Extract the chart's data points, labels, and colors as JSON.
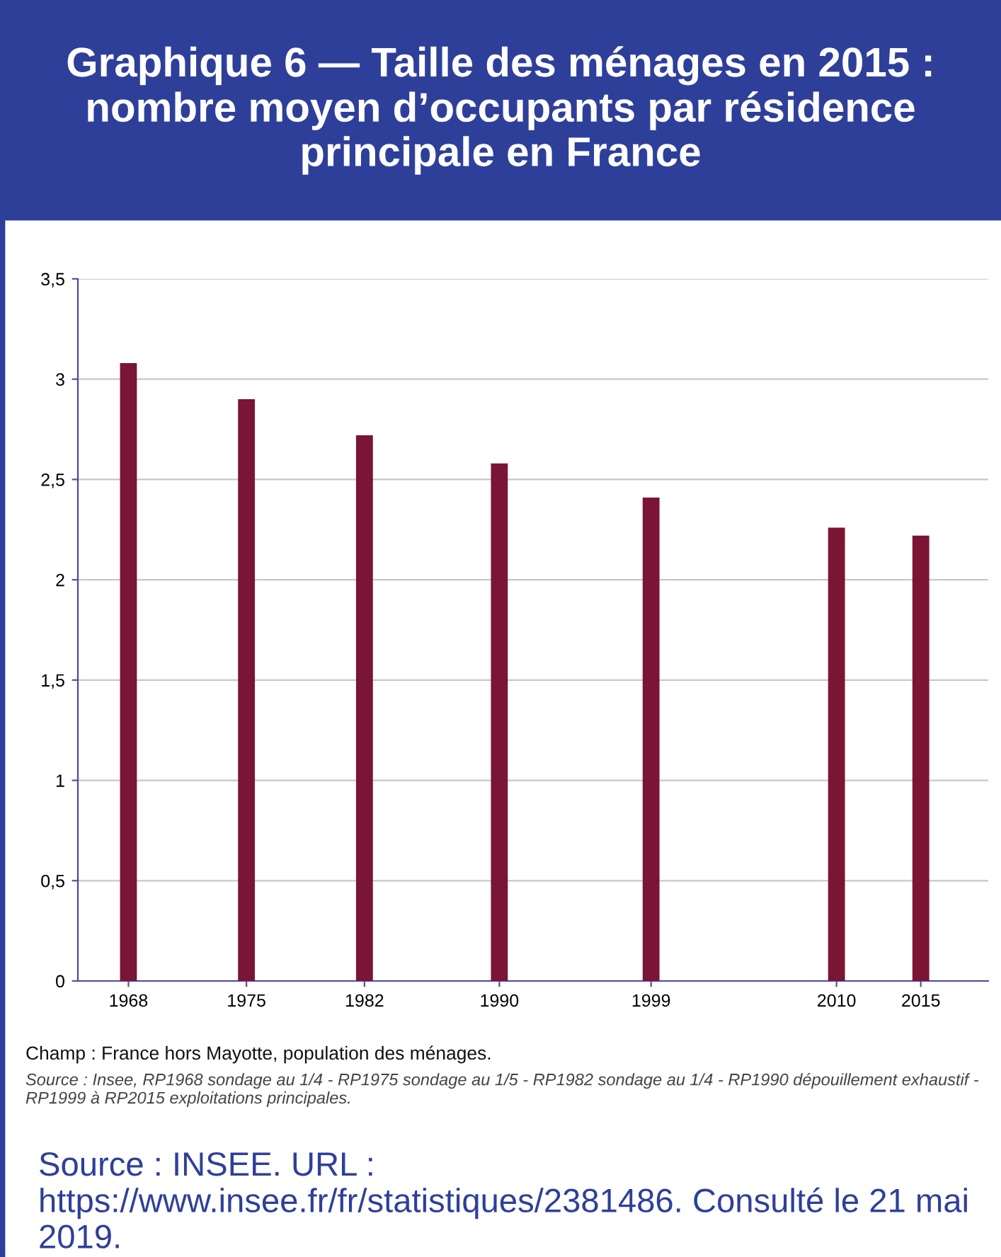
{
  "chart_data": {
    "type": "bar",
    "title": "Graphique 6 — Taille des ménages en 2015 : nombre moyen d’occupants par résidence principale en France",
    "x": [
      1968,
      1975,
      1982,
      1990,
      1999,
      2010,
      2015
    ],
    "values": [
      3.08,
      2.9,
      2.72,
      2.58,
      2.41,
      2.26,
      2.22
    ],
    "color": "#7b1535",
    "xlim": [
      1965,
      2019
    ],
    "xticks": [
      1968,
      1975,
      1982,
      1990,
      1999,
      2010,
      2015
    ],
    "ylim": [
      0,
      3.5
    ],
    "yticks": [
      0,
      {
        "value": 0.5,
        "label": "0,5"
      },
      1,
      {
        "value": 1.5,
        "label": "1,5"
      },
      2,
      {
        "value": 2.5,
        "label": "2,5"
      },
      3,
      {
        "value": 3.5,
        "label": "3,5"
      }
    ],
    "grid": "y",
    "annotations": [
      "Champ : France hors Mayotte, population des ménages.",
      "Source : Insee, RP1968 sondage au 1/4 - RP1975 sondage au 1/5 - RP1982 sondage au 1/4 - RP1990 dépouillement exhaustif - RP1999 à RP2015 exploitations principales.",
      "Source : INSEE. URL : https://www.insee.fr/fr/statistiques/2381486. Consulté le 21 mai 2019."
    ]
  }
}
